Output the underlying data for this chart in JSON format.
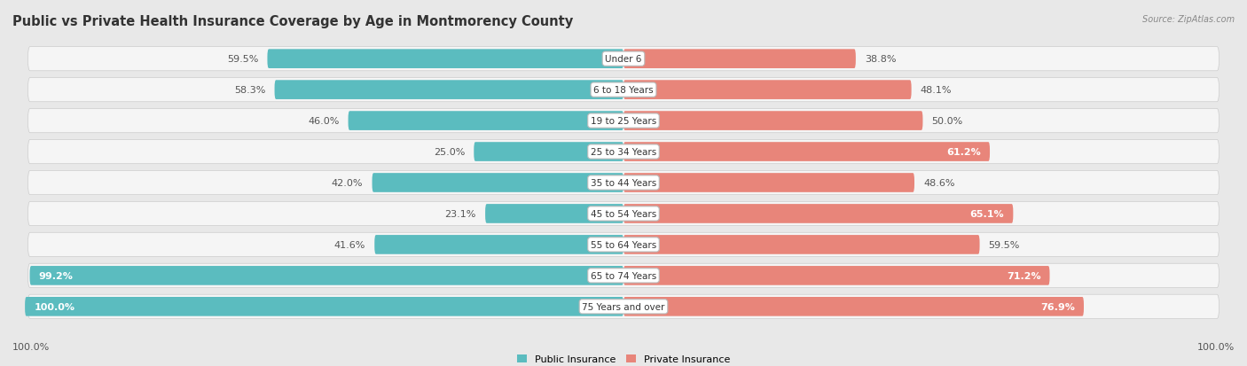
{
  "title": "Public vs Private Health Insurance Coverage by Age in Montmorency County",
  "source": "Source: ZipAtlas.com",
  "categories": [
    "Under 6",
    "6 to 18 Years",
    "19 to 25 Years",
    "25 to 34 Years",
    "35 to 44 Years",
    "45 to 54 Years",
    "55 to 64 Years",
    "65 to 74 Years",
    "75 Years and over"
  ],
  "public_values": [
    59.5,
    58.3,
    46.0,
    25.0,
    42.0,
    23.1,
    41.6,
    99.2,
    100.0
  ],
  "private_values": [
    38.8,
    48.1,
    50.0,
    61.2,
    48.6,
    65.1,
    59.5,
    71.2,
    76.9
  ],
  "public_color": "#5bbcbf",
  "private_color": "#e8857a",
  "background_color": "#e8e8e8",
  "bar_row_color": "#f5f5f5",
  "bar_height": 0.62,
  "legend_public": "Public Insurance",
  "legend_private": "Private Insurance",
  "title_fontsize": 10.5,
  "label_fontsize": 8,
  "category_fontsize": 7.5,
  "axis_label_fontsize": 8,
  "white_text_threshold_pub": 90,
  "white_text_threshold_priv": 60
}
